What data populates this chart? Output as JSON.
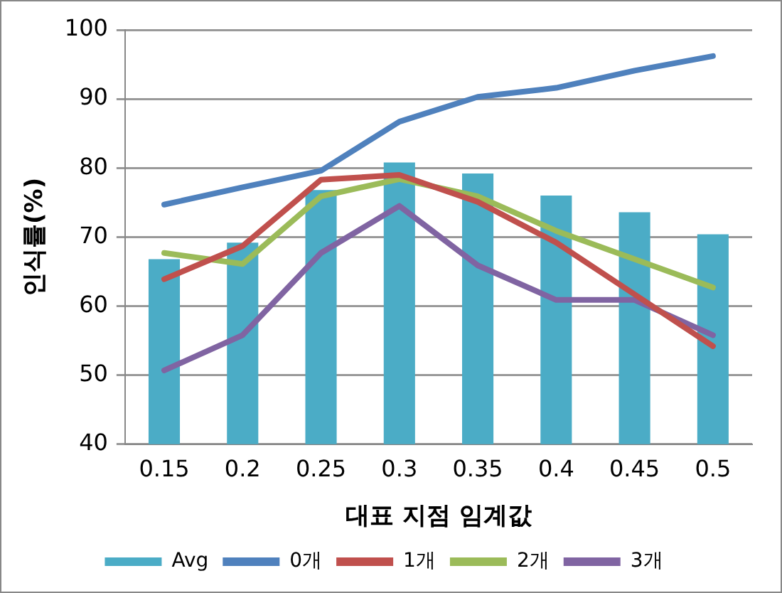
{
  "chart_data": {
    "type": "bar",
    "xlabel": "대표 지점 임계값",
    "ylabel": "인식률(%)",
    "categories": [
      "0.15",
      "0.2",
      "0.25",
      "0.3",
      "0.35",
      "0.4",
      "0.45",
      "0.5"
    ],
    "series": [
      {
        "name": "Avg",
        "color": "#4bacc6",
        "values": [
          66.8,
          69.2,
          76.8,
          80.8,
          79.2,
          76.0,
          73.6,
          70.4
        ]
      },
      {
        "name": "0개",
        "type": "line",
        "color": "#4f81bd",
        "values": [
          74.7,
          77.2,
          79.6,
          86.7,
          90.3,
          91.6,
          94.1,
          96.2
        ]
      },
      {
        "name": "1개",
        "type": "line",
        "color": "#c0504d",
        "values": [
          63.9,
          68.7,
          78.3,
          79.0,
          75.1,
          69.2,
          61.7,
          54.2
        ]
      },
      {
        "name": "2개",
        "type": "line",
        "color": "#9bbb59",
        "values": [
          67.7,
          66.1,
          75.9,
          78.4,
          75.9,
          70.9,
          66.8,
          62.7
        ]
      },
      {
        "name": "3개",
        "type": "line",
        "color": "#8064a2",
        "values": [
          50.7,
          55.8,
          67.7,
          74.5,
          65.9,
          60.9,
          60.9,
          55.8
        ]
      }
    ],
    "ylim": [
      40,
      100
    ],
    "yticks": [
      40,
      50,
      60,
      70,
      80,
      90,
      100
    ],
    "grid": "y",
    "legend": "bottom",
    "marker": "none",
    "line_style": "solid"
  }
}
